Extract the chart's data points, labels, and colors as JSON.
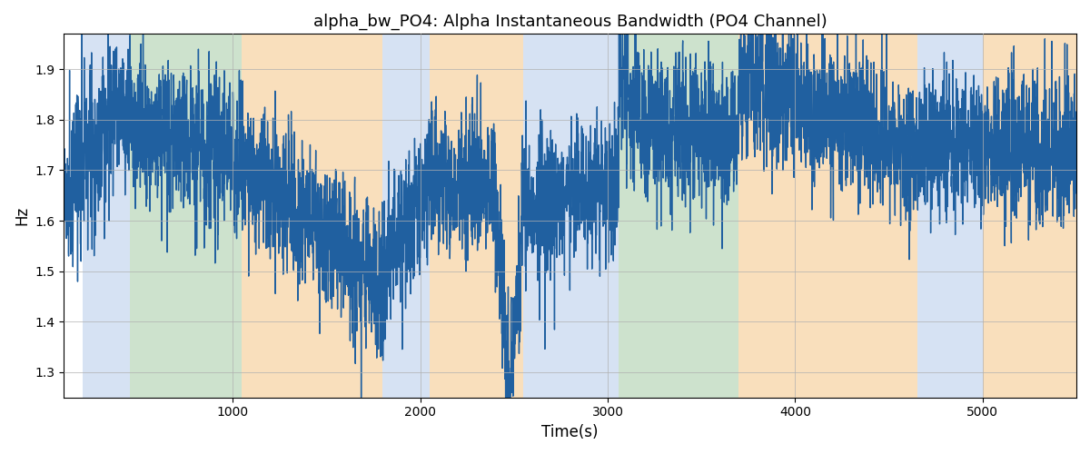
{
  "title": "alpha_bw_PO4: Alpha Instantaneous Bandwidth (PO4 Channel)",
  "xlabel": "Time(s)",
  "ylabel": "Hz",
  "xlim": [
    100,
    5500
  ],
  "ylim": [
    1.25,
    1.97
  ],
  "figsize": [
    12.0,
    5.0
  ],
  "dpi": 100,
  "line_color": "#2060a0",
  "line_width": 1.0,
  "grid_color": "#b0b0b0",
  "bands": [
    {
      "xmin": 200,
      "xmax": 450,
      "color": "#aec6e8",
      "alpha": 0.5
    },
    {
      "xmin": 450,
      "xmax": 1050,
      "color": "#90c090",
      "alpha": 0.45
    },
    {
      "xmin": 1050,
      "xmax": 1800,
      "color": "#f5c07a",
      "alpha": 0.5
    },
    {
      "xmin": 1800,
      "xmax": 2050,
      "color": "#aec6e8",
      "alpha": 0.5
    },
    {
      "xmin": 2050,
      "xmax": 2550,
      "color": "#f5c07a",
      "alpha": 0.5
    },
    {
      "xmin": 2550,
      "xmax": 3060,
      "color": "#aec6e8",
      "alpha": 0.5
    },
    {
      "xmin": 3060,
      "xmax": 3160,
      "color": "#90c090",
      "alpha": 0.45
    },
    {
      "xmin": 3160,
      "xmax": 3700,
      "color": "#90c090",
      "alpha": 0.45
    },
    {
      "xmin": 3700,
      "xmax": 4650,
      "color": "#f5c07a",
      "alpha": 0.5
    },
    {
      "xmin": 4650,
      "xmax": 5000,
      "color": "#aec6e8",
      "alpha": 0.5
    },
    {
      "xmin": 5000,
      "xmax": 5500,
      "color": "#f5c07a",
      "alpha": 0.5
    }
  ]
}
